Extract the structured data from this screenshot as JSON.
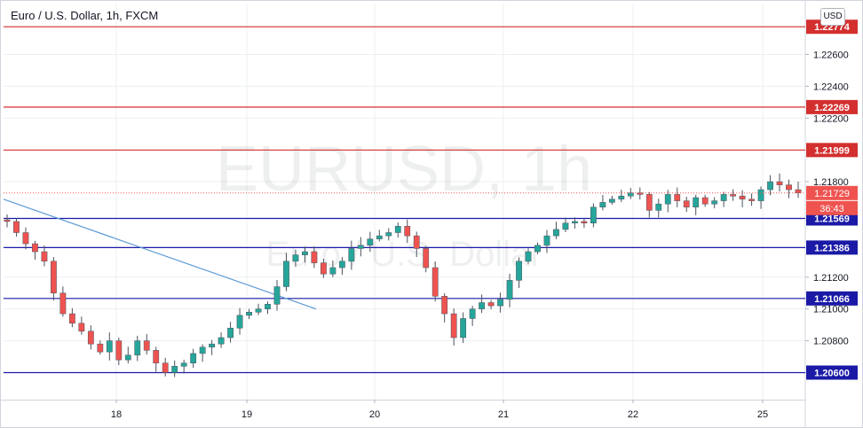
{
  "header": {
    "title": "Euro / U.S. Dollar, 1h, FXCM",
    "currency": "USD"
  },
  "watermark": {
    "symbol": "EURUSD, 1h",
    "name": "Euro / U.S. Dollar"
  },
  "countdown": "36:43",
  "colors": {
    "up": "#26a69a",
    "down": "#ef5350",
    "wick": "#4c525e",
    "resistance": "#d32f2f",
    "support": "#1a1aa6",
    "trendline": "#5b9bd5",
    "grid": "#eceff2",
    "last": "#ef5350"
  },
  "chart_data": {
    "type": "candlestick",
    "title": "Euro / U.S. Dollar, 1h, FXCM",
    "ylim": [
      1.2043,
      1.2292
    ],
    "y_ticks": [
      "1.22600",
      "1.22400",
      "1.22200",
      "1.21800",
      "1.21200",
      "1.21000",
      "1.20800"
    ],
    "x_ticks": [
      "18",
      "19",
      "20",
      "21",
      "22",
      "25"
    ],
    "resistance_levels": [
      "1.22774",
      "1.22269",
      "1.21999"
    ],
    "support_levels": [
      "1.21569",
      "1.21386",
      "1.21066",
      "1.20600"
    ],
    "last_price": "1.21729",
    "trendline": {
      "from_price": 1.2169,
      "to_price": 1.21
    },
    "close_path": [
      1.2155,
      1.2148,
      1.2141,
      1.2136,
      1.213,
      1.211,
      1.2097,
      1.2091,
      1.2086,
      1.2078,
      1.2073,
      1.208,
      1.2068,
      1.2071,
      1.208,
      1.2074,
      1.2066,
      1.206,
      1.2064,
      1.2066,
      1.2072,
      1.2076,
      1.2078,
      1.2082,
      1.2088,
      1.2096,
      1.2098,
      1.21,
      1.2103,
      1.2114,
      1.213,
      1.2134,
      1.2136,
      1.2129,
      1.2122,
      1.2126,
      1.213,
      1.2138,
      1.214,
      1.2144,
      1.2146,
      1.2148,
      1.2152,
      1.2146,
      1.2138,
      1.2126,
      1.2108,
      1.2097,
      1.2082,
      1.2094,
      1.21,
      1.2104,
      1.2102,
      1.2106,
      1.2118,
      1.213,
      1.2136,
      1.214,
      1.2146,
      1.215,
      1.2154,
      1.2155,
      1.2154,
      1.2164,
      1.2167,
      1.2169,
      1.2171,
      1.2173,
      1.2172,
      1.2162,
      1.2166,
      1.2172,
      1.2168,
      1.2164,
      1.217,
      1.2166,
      1.2168,
      1.2172,
      1.2171,
      1.2169,
      1.2168,
      1.2175,
      1.218,
      1.2178,
      1.2175,
      1.2173
    ]
  }
}
